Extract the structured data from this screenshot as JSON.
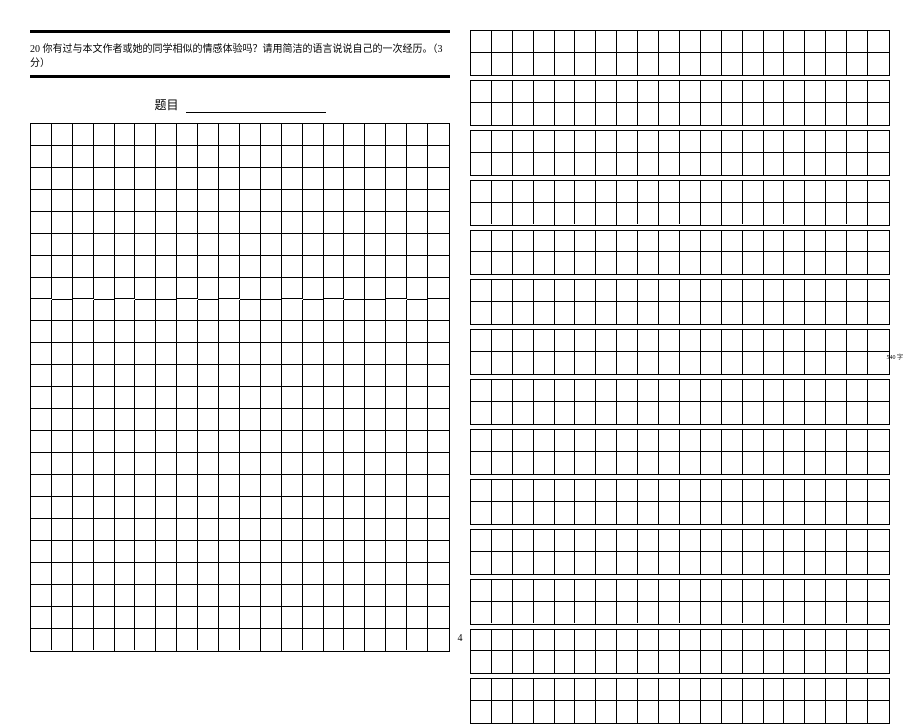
{
  "left": {
    "question_text": "20 你有过与本文作者或她的同学相似的情感体验吗？请用简洁的语言说说自己的一次经历。（3 分）",
    "title_label": "题目",
    "grid": {
      "cols": 20,
      "rows": 24
    }
  },
  "right": {
    "blocks": [
      {
        "rows": 2
      },
      {
        "rows": 2
      },
      {
        "rows": 2
      },
      {
        "rows": 2
      },
      {
        "rows": 2
      },
      {
        "rows": 2
      },
      {
        "rows": 2,
        "marker": "540 字"
      },
      {
        "rows": 2
      },
      {
        "rows": 2
      },
      {
        "rows": 2
      },
      {
        "rows": 2
      },
      {
        "rows": 2
      },
      {
        "rows": 2
      },
      {
        "rows": 2
      }
    ],
    "cols": 20
  },
  "page_number": "4",
  "colors": {
    "line": "#000000",
    "bg": "#ffffff"
  }
}
